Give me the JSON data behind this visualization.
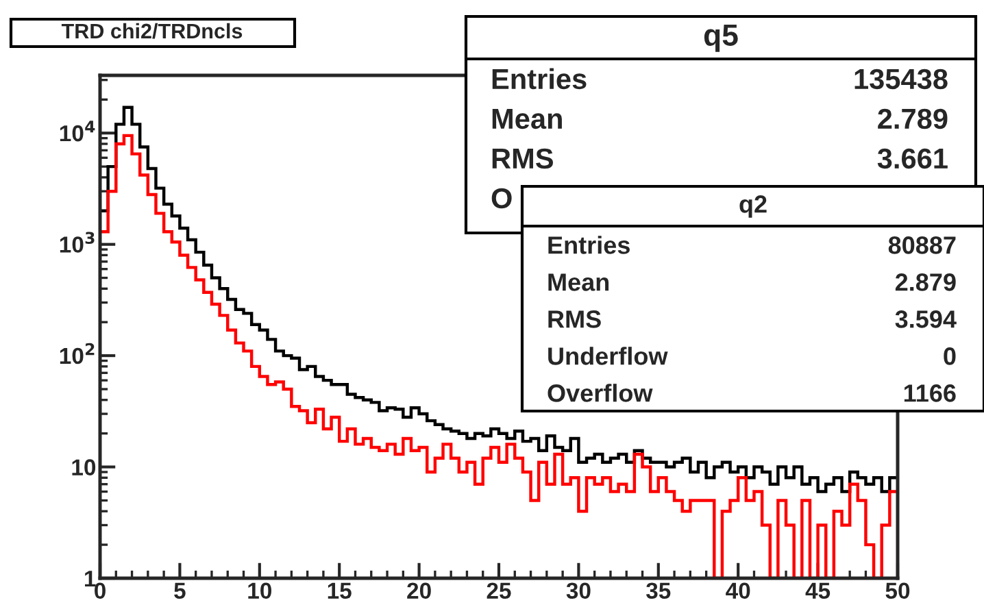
{
  "chart_data": {
    "type": "histogram",
    "title": "TRD chi2/TRDncls",
    "bins": [
      0,
      0.5,
      1,
      1.5,
      2,
      2.5,
      3,
      3.5,
      4,
      4.5,
      5,
      5.5,
      6,
      6.5,
      7,
      7.5,
      8,
      8.5,
      9,
      9.5,
      10,
      10.5,
      11,
      11.5,
      12,
      12.5,
      13,
      13.5,
      14,
      14.5,
      15,
      15.5,
      16,
      16.5,
      17,
      17.5,
      18,
      18.5,
      19,
      19.5,
      20,
      20.5,
      21,
      21.5,
      22,
      22.5,
      23,
      23.5,
      24,
      24.5,
      25,
      25.5,
      26,
      26.5,
      27,
      27.5,
      28,
      28.5,
      29,
      29.5,
      30,
      30.5,
      31,
      31.5,
      32,
      32.5,
      33,
      33.5,
      34,
      34.5,
      35,
      35.5,
      36,
      36.5,
      37,
      37.5,
      38,
      38.5,
      39,
      39.5,
      40,
      40.5,
      41,
      41.5,
      42,
      42.5,
      43,
      43.5,
      44,
      44.5,
      45,
      45.5,
      46,
      46.5,
      47,
      47.5,
      48,
      48.5,
      49,
      49.5,
      50
    ],
    "series": [
      {
        "color": "#000000",
        "values": [
          2000,
          5000,
          12000,
          17000,
          12000,
          7500,
          4800,
          3200,
          2300,
          1800,
          1400,
          1100,
          850,
          650,
          500,
          400,
          320,
          260,
          240,
          190,
          170,
          140,
          110,
          100,
          95,
          75,
          80,
          65,
          60,
          55,
          55,
          45,
          42,
          40,
          38,
          32,
          34,
          33,
          28,
          34,
          30,
          26,
          24,
          22,
          21,
          20,
          18,
          20,
          19,
          22,
          20,
          18,
          21,
          17,
          18,
          14,
          19,
          15,
          14,
          18,
          11,
          12,
          13,
          11,
          12,
          13,
          11,
          14,
          12,
          11,
          11,
          10,
          11,
          12,
          9,
          11,
          8,
          10,
          11,
          9,
          10,
          8,
          10,
          9,
          7,
          10,
          8,
          10,
          7,
          8,
          6,
          7,
          8,
          6,
          9,
          8,
          7,
          8,
          6,
          8
        ]
      },
      {
        "color": "#ff0000",
        "values": [
          1300,
          3000,
          8000,
          9500,
          6500,
          4200,
          2800,
          1900,
          1300,
          1050,
          800,
          620,
          480,
          370,
          290,
          230,
          170,
          130,
          110,
          80,
          65,
          55,
          58,
          50,
          35,
          32,
          25,
          33,
          22,
          28,
          17,
          22,
          16,
          18,
          15,
          14,
          16,
          13,
          18,
          14,
          15,
          9,
          12,
          16,
          12,
          9,
          11,
          7,
          12,
          15,
          11,
          16,
          12,
          9,
          5,
          11,
          7,
          13,
          7,
          8,
          4,
          8,
          7,
          8,
          6,
          7,
          6,
          13,
          10,
          6,
          8,
          6,
          5,
          4,
          5,
          5,
          5,
          1,
          4,
          5,
          8,
          5,
          6,
          3,
          1,
          5,
          3,
          1,
          5,
          1,
          3,
          1,
          4,
          3,
          7,
          5,
          2,
          1,
          3,
          6
        ]
      }
    ],
    "log": "y",
    "xlim": [
      0,
      50
    ],
    "xticks": [
      0,
      5,
      10,
      15,
      20,
      25,
      30,
      35,
      40,
      45,
      50
    ],
    "ylim": [
      1,
      33000
    ],
    "yticks": [
      1,
      10,
      {
        "value": 100,
        "label": "10$^{2}$"
      },
      {
        "value": 1000,
        "label": "10$^{3}$"
      },
      {
        "value": 10000,
        "label": "10$^{4}$"
      }
    ],
    "grid": false,
    "annotations": [
      "q5",
      "Entries",
      "135438",
      "Mean",
      "2.789",
      "RMS",
      "3.661",
      "O",
      "q2",
      "Entries",
      "80887",
      "Mean",
      "2.879",
      "RMS",
      "3.594",
      "Underflow",
      "0",
      "Overflow",
      "1166"
    ]
  }
}
